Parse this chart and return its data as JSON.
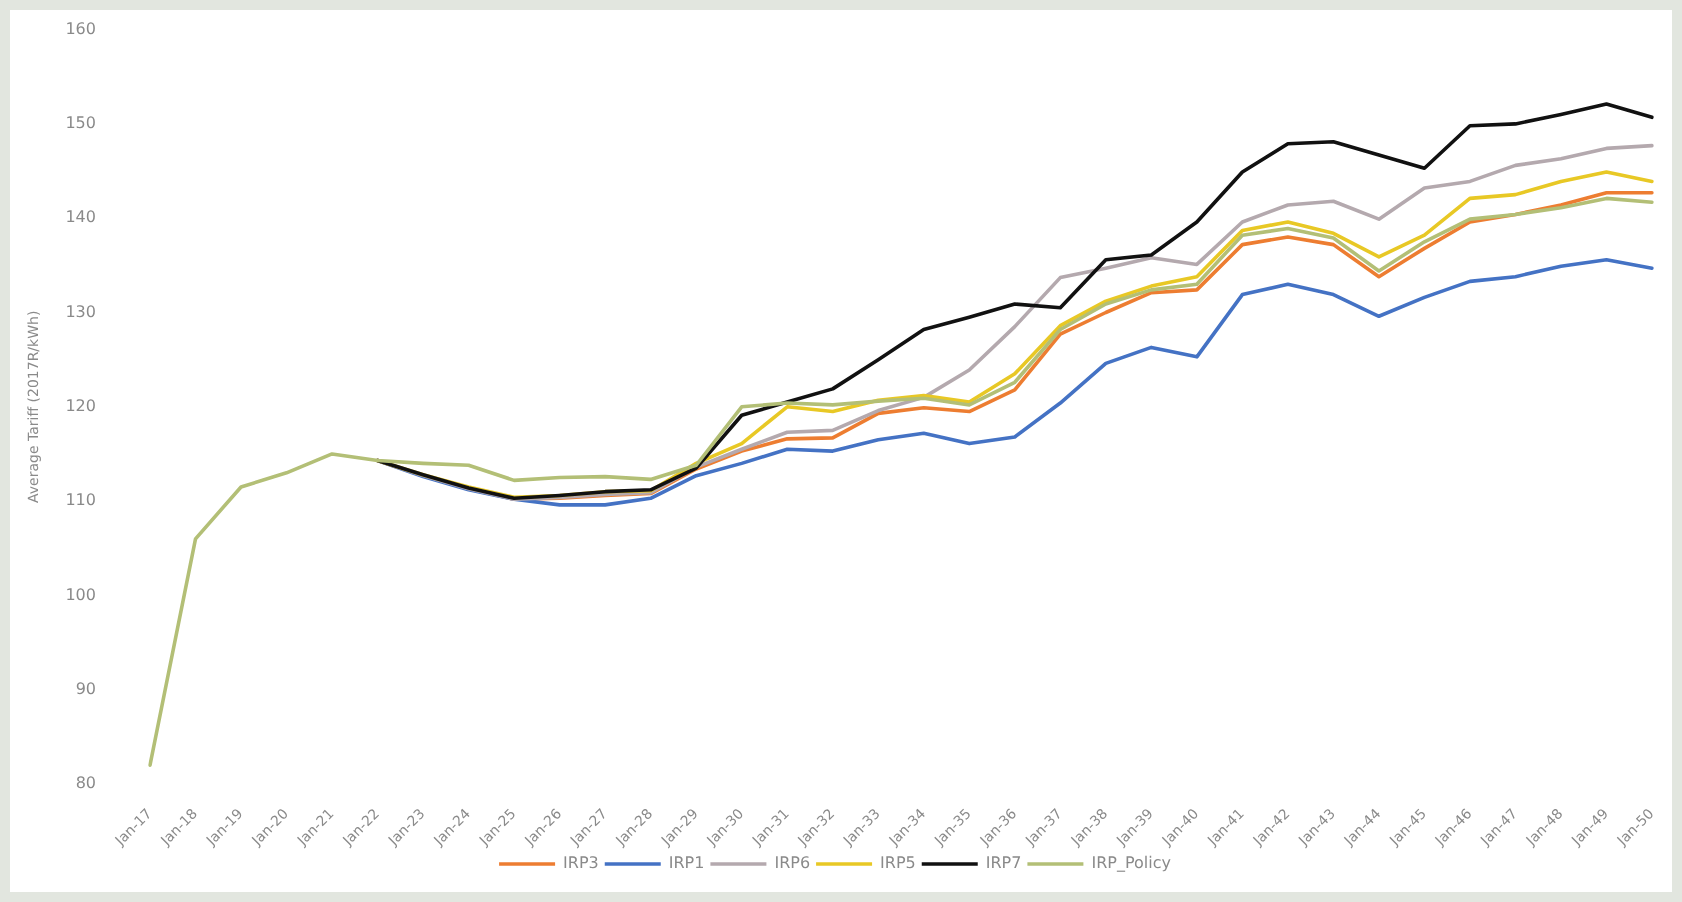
{
  "chart_data": {
    "type": "line",
    "ylabel": "Average Tariff (2017R/kWh)",
    "categories": [
      "Jan-17",
      "Jan-18",
      "Jan-19",
      "Jan-20",
      "Jan-21",
      "Jan-22",
      "Jan-23",
      "Jan-24",
      "Jan-25",
      "Jan-26",
      "Jan-27",
      "Jan-28",
      "Jan-29",
      "Jan-30",
      "Jan-31",
      "Jan-32",
      "Jan-33",
      "Jan-34",
      "Jan-35",
      "Jan-36",
      "Jan-37",
      "Jan-38",
      "Jan-39",
      "Jan-40",
      "Jan-41",
      "Jan-42",
      "Jan-43",
      "Jan-44",
      "Jan-45",
      "Jan-46",
      "Jan-47",
      "Jan-48",
      "Jan-49",
      "Jan-50"
    ],
    "series": [
      {
        "name": "IRP3",
        "color": "#ed7d31",
        "values": [
          null,
          null,
          null,
          null,
          null,
          114.3,
          112.7,
          111.3,
          110.2,
          110.3,
          110.6,
          110.8,
          113.4,
          115.3,
          116.6,
          116.7,
          119.3,
          119.9,
          119.5,
          121.8,
          127.7,
          130,
          132.1,
          132.4,
          137.2,
          138,
          137.2,
          133.8,
          136.8,
          139.6,
          140.4,
          141.4,
          142.7,
          142.7
        ]
      },
      {
        "name": "IRP1",
        "color": "#4472c4",
        "values": [
          null,
          null,
          null,
          null,
          null,
          114.3,
          112.6,
          111.2,
          110.2,
          109.6,
          109.6,
          110.3,
          112.7,
          114,
          115.5,
          115.3,
          116.5,
          117.2,
          116.1,
          116.8,
          120.4,
          124.6,
          126.3,
          125.3,
          131.9,
          133,
          131.9,
          129.6,
          131.6,
          133.3,
          133.8,
          134.9,
          135.6,
          134.7
        ]
      },
      {
        "name": "IRP6",
        "color": "#b4a9ae",
        "values": [
          null,
          null,
          null,
          null,
          null,
          114.3,
          112.7,
          111.3,
          110.2,
          110.4,
          110.7,
          110.9,
          113.6,
          115.5,
          117.3,
          117.5,
          119.6,
          121,
          123.9,
          128.5,
          133.7,
          134.7,
          135.8,
          135.1,
          139.6,
          141.4,
          141.8,
          139.9,
          143.2,
          143.9,
          145.6,
          146.3,
          147.4,
          147.7
        ]
      },
      {
        "name": "IRP5",
        "color": "#e8c825",
        "values": [
          null,
          null,
          null,
          null,
          null,
          114.3,
          112.8,
          111.5,
          110.4,
          110.6,
          111,
          111.1,
          114,
          116.1,
          120,
          119.5,
          120.7,
          121.2,
          120.5,
          123.5,
          128.6,
          131.2,
          132.8,
          133.8,
          138.7,
          139.6,
          138.4,
          135.9,
          138.2,
          142.1,
          142.5,
          143.9,
          144.9,
          143.9
        ]
      },
      {
        "name": "IRP7",
        "color": "#111111",
        "values": [
          null,
          null,
          null,
          null,
          null,
          114.3,
          112.8,
          111.4,
          110.3,
          110.6,
          111,
          111.2,
          113.5,
          119.1,
          120.5,
          121.9,
          125,
          128.2,
          129.5,
          130.9,
          130.5,
          135.6,
          136.1,
          139.6,
          144.9,
          147.9,
          148.1,
          146.7,
          145.3,
          149.8,
          150,
          151,
          152.1,
          150.7
        ]
      },
      {
        "name": "IRP_Policy",
        "color": "#b3bf76",
        "values": [
          82,
          106,
          111.5,
          113,
          115,
          114.3,
          114,
          113.8,
          112.2,
          112.5,
          112.6,
          112.3,
          113.8,
          120,
          120.4,
          120.2,
          120.6,
          120.9,
          120.2,
          122.6,
          128.2,
          130.9,
          132.4,
          133,
          138.2,
          138.9,
          137.9,
          134.4,
          137.5,
          139.9,
          140.4,
          141.1,
          142.1,
          141.7
        ]
      }
    ],
    "ylim": [
      80,
      160
    ],
    "yticks": [
      80,
      90,
      100,
      110,
      120,
      130,
      140,
      150,
      160
    ],
    "legend": "bottom",
    "marker": "none",
    "line_style": "solid"
  }
}
